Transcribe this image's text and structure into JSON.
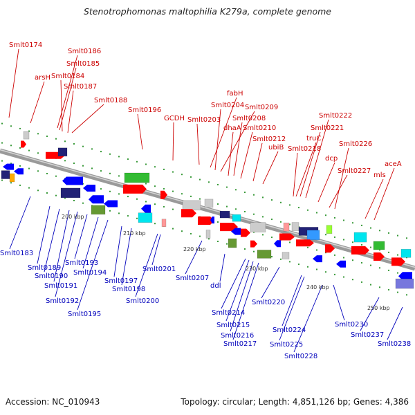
{
  "title": "Stenotrophomonas maltophilia K279a, complete genome",
  "footer": {
    "accession": "Accession: NC_010943",
    "summary": "Topology: circular; Length: 4,851,126 bp; Genes: 4,386"
  },
  "colors": {
    "top_label": "#cc0000",
    "bottom_label": "#0000bb",
    "forward_arrow": "#ff0000",
    "reverse_arrow": "#0000ff",
    "backbone": "#888888",
    "cds_green": "#33bb33",
    "cds_cyan": "#00e5ee",
    "cds_navy": "#222277",
    "cds_gray": "#cccccc",
    "cds_olive": "#669933",
    "cds_pink": "#ff9999"
  },
  "scale_labels": [
    "200 kbp",
    "210 kbp",
    "220 kbp",
    "230 kbp",
    "240 kbp",
    "250 kbp"
  ],
  "top_labels": [
    "Smlt0174",
    "Smlt0186",
    "Smlt0185",
    "arsH",
    "Smlt0184",
    "Smlt0187",
    "Smlt0188",
    "Smlt0196",
    "fabH",
    "Smlt0204",
    "Smlt0209",
    "GCDH",
    "Smlt0203",
    "Smlt0208",
    "dhaA",
    "Smlt0210",
    "Smlt0212",
    "ubiB",
    "Smlt0222",
    "Smlt0221",
    "truC",
    "Smlt0218",
    "dcp",
    "Smlt0226",
    "aceA",
    "Smlt0227",
    "mls"
  ],
  "bottom_labels": [
    "Smlt0183",
    "Smlt0189",
    "Smlt0190",
    "Smlt0191",
    "Smlt0192",
    "Smlt0193",
    "Smlt0194",
    "Smlt0195",
    "Smlt0197",
    "Smlt0198",
    "Smlt0200",
    "Smlt0201",
    "Smlt0207",
    "ddl",
    "Smlt0214",
    "Smlt0215",
    "Smlt0216",
    "Smlt0217",
    "Smlt0220",
    "Smlt0224",
    "Smlt0225",
    "Smlt0228",
    "Smlt0230",
    "Smlt0237",
    "Smlt0238"
  ]
}
